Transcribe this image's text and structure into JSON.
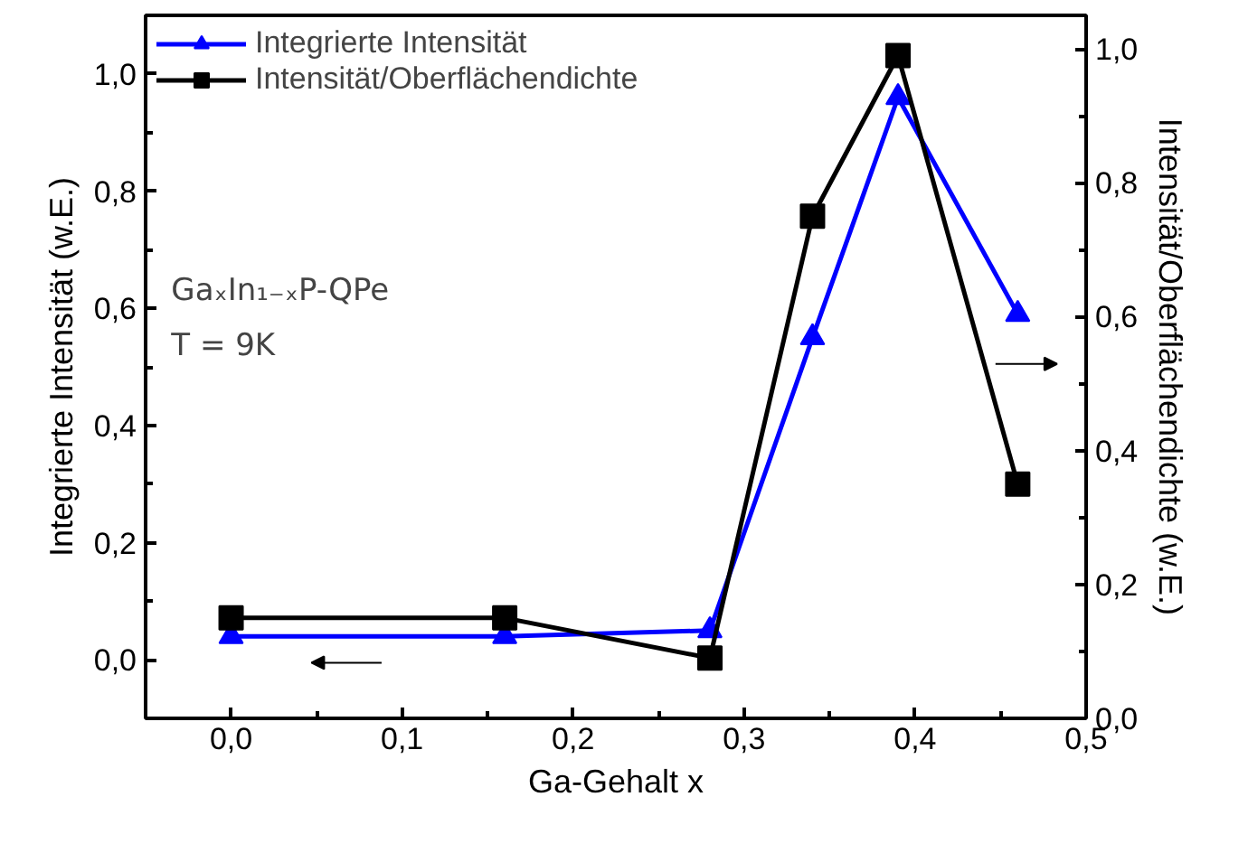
{
  "chart_data": {
    "type": "line",
    "xlabel": "Ga-Gehalt x",
    "ylabel": "Integrierte Intensität (w.E.)",
    "y2label": "Intensität/Oberflächendichte (w.E.)",
    "x": [
      0,
      0.16,
      0.28,
      0.34,
      0.39,
      0.46
    ],
    "series": [
      {
        "name": "Integrierte Intensität",
        "color": "#0000ff",
        "marker": "triangle",
        "values": [
          0.04,
          0.04,
          0.05,
          0.55,
          0.96,
          0.59
        ]
      },
      {
        "name": "Intensität/Oberflächendichte",
        "color": "#000000",
        "marker": "square",
        "axis": "y2",
        "values": [
          0.15,
          0.15,
          0.09,
          0.75,
          0.99,
          0.35
        ]
      }
    ],
    "xlim": [
      -0.05,
      0.5
    ],
    "xticks": [
      {
        "value": 0,
        "label": "0,0"
      },
      {
        "value": 0.1,
        "label": "0,1"
      },
      {
        "value": 0.2,
        "label": "0,2"
      },
      {
        "value": 0.3,
        "label": "0,3"
      },
      {
        "value": 0.4,
        "label": "0,4"
      },
      {
        "value": 0.5,
        "label": "0,5"
      }
    ],
    "ylim": [
      -0.1,
      1.1
    ],
    "yticks": [
      {
        "value": 0,
        "label": "0,0"
      },
      {
        "value": 0.2,
        "label": "0,2"
      },
      {
        "value": 0.4,
        "label": "0,4"
      },
      {
        "value": 0.6,
        "label": "0,6"
      },
      {
        "value": 0.8,
        "label": "0,8"
      },
      {
        "value": 1.0,
        "label": "1,0"
      }
    ],
    "y2lim": [
      0,
      1.05
    ],
    "y2ticks": [
      {
        "value": 0,
        "label": "0,0"
      },
      {
        "value": 0.2,
        "label": "0,2"
      },
      {
        "value": 0.4,
        "label": "0,4"
      },
      {
        "value": 0.6,
        "label": "0,6"
      },
      {
        "value": 0.8,
        "label": "0,8"
      },
      {
        "value": 1.0,
        "label": "1,0"
      }
    ],
    "annotations": [
      "GaₓIn₁₋ₓP-QPe",
      "T = 9K"
    ],
    "legend": "top left",
    "grid": false,
    "line_style": "solid"
  }
}
